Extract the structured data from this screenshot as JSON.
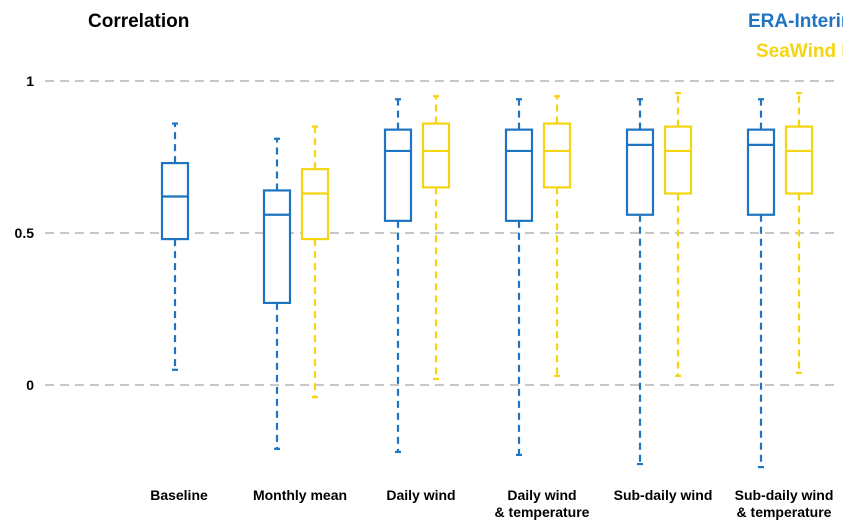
{
  "chart_data": {
    "type": "boxplot",
    "title": "Correlation",
    "xlabel": "",
    "ylabel": "",
    "ylim": [
      -0.3,
      1.1
    ],
    "yticks": [
      "1",
      "0.5",
      "0"
    ],
    "grid": "horizontal dashed at 0, 0.5, 1",
    "legend_position": "top-right",
    "categories": [
      [
        "Baseline"
      ],
      [
        "Monthly mean"
      ],
      [
        "Daily wind"
      ],
      [
        "Daily wind",
        "& temperature"
      ],
      [
        "Sub-daily wind"
      ],
      [
        "Sub-daily wind",
        "& temperature"
      ]
    ],
    "series": [
      {
        "name": "ERA-Interim",
        "color": "#1f74c2",
        "boxes": [
          {
            "min": 0.05,
            "q1": 0.48,
            "median": 0.62,
            "q3": 0.73,
            "max": 0.86
          },
          {
            "min": -0.21,
            "q1": 0.27,
            "median": 0.56,
            "q3": 0.64,
            "max": 0.81
          },
          {
            "min": -0.22,
            "q1": 0.54,
            "median": 0.77,
            "q3": 0.84,
            "max": 0.94
          },
          {
            "min": -0.23,
            "q1": 0.54,
            "median": 0.77,
            "q3": 0.84,
            "max": 0.94
          },
          {
            "min": -0.26,
            "q1": 0.56,
            "median": 0.79,
            "q3": 0.84,
            "max": 0.94
          },
          {
            "min": -0.27,
            "q1": 0.56,
            "median": 0.79,
            "q3": 0.84,
            "max": 0.94
          }
        ]
      },
      {
        "name": "SeaWind II",
        "color": "#f5d412",
        "boxes": [
          null,
          {
            "min": -0.04,
            "q1": 0.48,
            "median": 0.63,
            "q3": 0.71,
            "max": 0.85
          },
          {
            "min": 0.02,
            "q1": 0.65,
            "median": 0.77,
            "q3": 0.86,
            "max": 0.95
          },
          {
            "min": 0.03,
            "q1": 0.65,
            "median": 0.77,
            "q3": 0.86,
            "max": 0.95
          },
          {
            "min": 0.03,
            "q1": 0.63,
            "median": 0.77,
            "q3": 0.85,
            "max": 0.96
          },
          {
            "min": 0.04,
            "q1": 0.63,
            "median": 0.77,
            "q3": 0.85,
            "max": 0.96
          }
        ]
      }
    ]
  }
}
